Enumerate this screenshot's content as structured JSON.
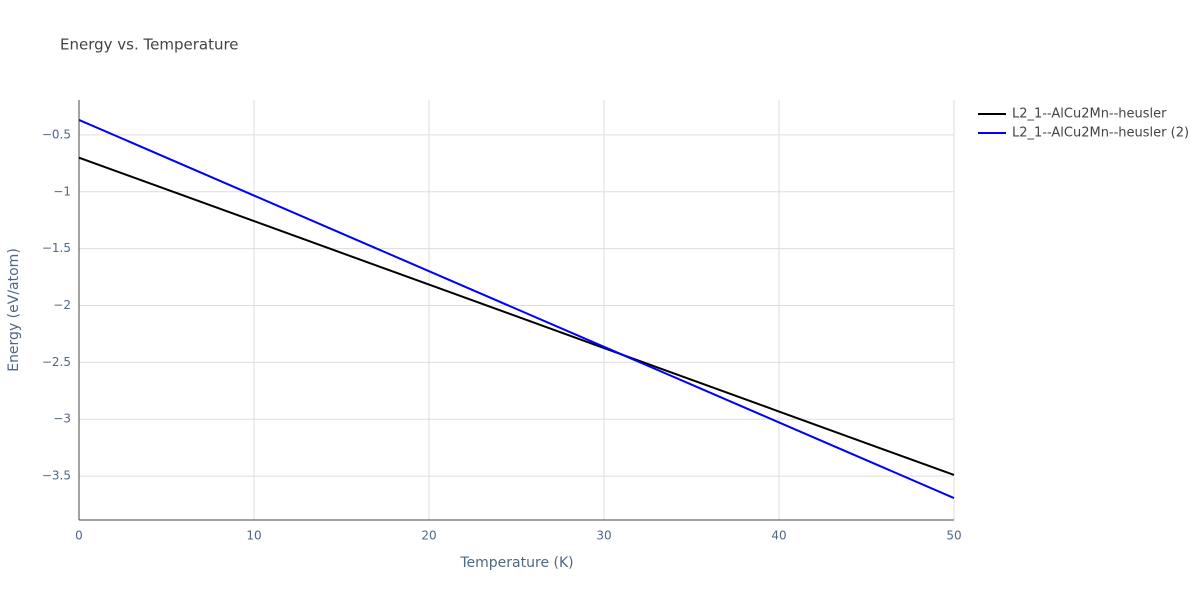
{
  "chart_data": {
    "type": "line",
    "title": "Energy vs. Temperature",
    "x_label": "Temperature (K)",
    "y_label": "Energy (eV/atom)",
    "x": [
      0,
      10,
      20,
      30,
      40,
      50
    ],
    "series": [
      {
        "name": "L2_1--AlCu2Mn--heusler",
        "color": "#000000",
        "values": [
          -0.7,
          -1.258,
          -1.816,
          -2.374,
          -2.932,
          -3.49
        ]
      },
      {
        "name": "L2_1--AlCu2Mn--heusler (2)",
        "color": "#0000ff",
        "values": [
          -0.368,
          -1.033,
          -1.698,
          -2.363,
          -3.028,
          -3.693
        ]
      }
    ],
    "xlim": [
      0,
      50
    ],
    "xticks": [
      0,
      10,
      20,
      30,
      40,
      50
    ],
    "ylim": [
      -3.886,
      -0.193
    ],
    "yticks": [
      {
        "value": -3.5,
        "label": "−3.5"
      },
      {
        "value": -3,
        "label": "−3"
      },
      {
        "value": -2.5,
        "label": "−2.5"
      },
      {
        "value": -2,
        "label": "−2"
      },
      {
        "value": -1.5,
        "label": "−1.5"
      },
      {
        "value": -1,
        "label": "−1"
      },
      {
        "value": -0.5,
        "label": "−0.5"
      }
    ],
    "grid": true
  }
}
